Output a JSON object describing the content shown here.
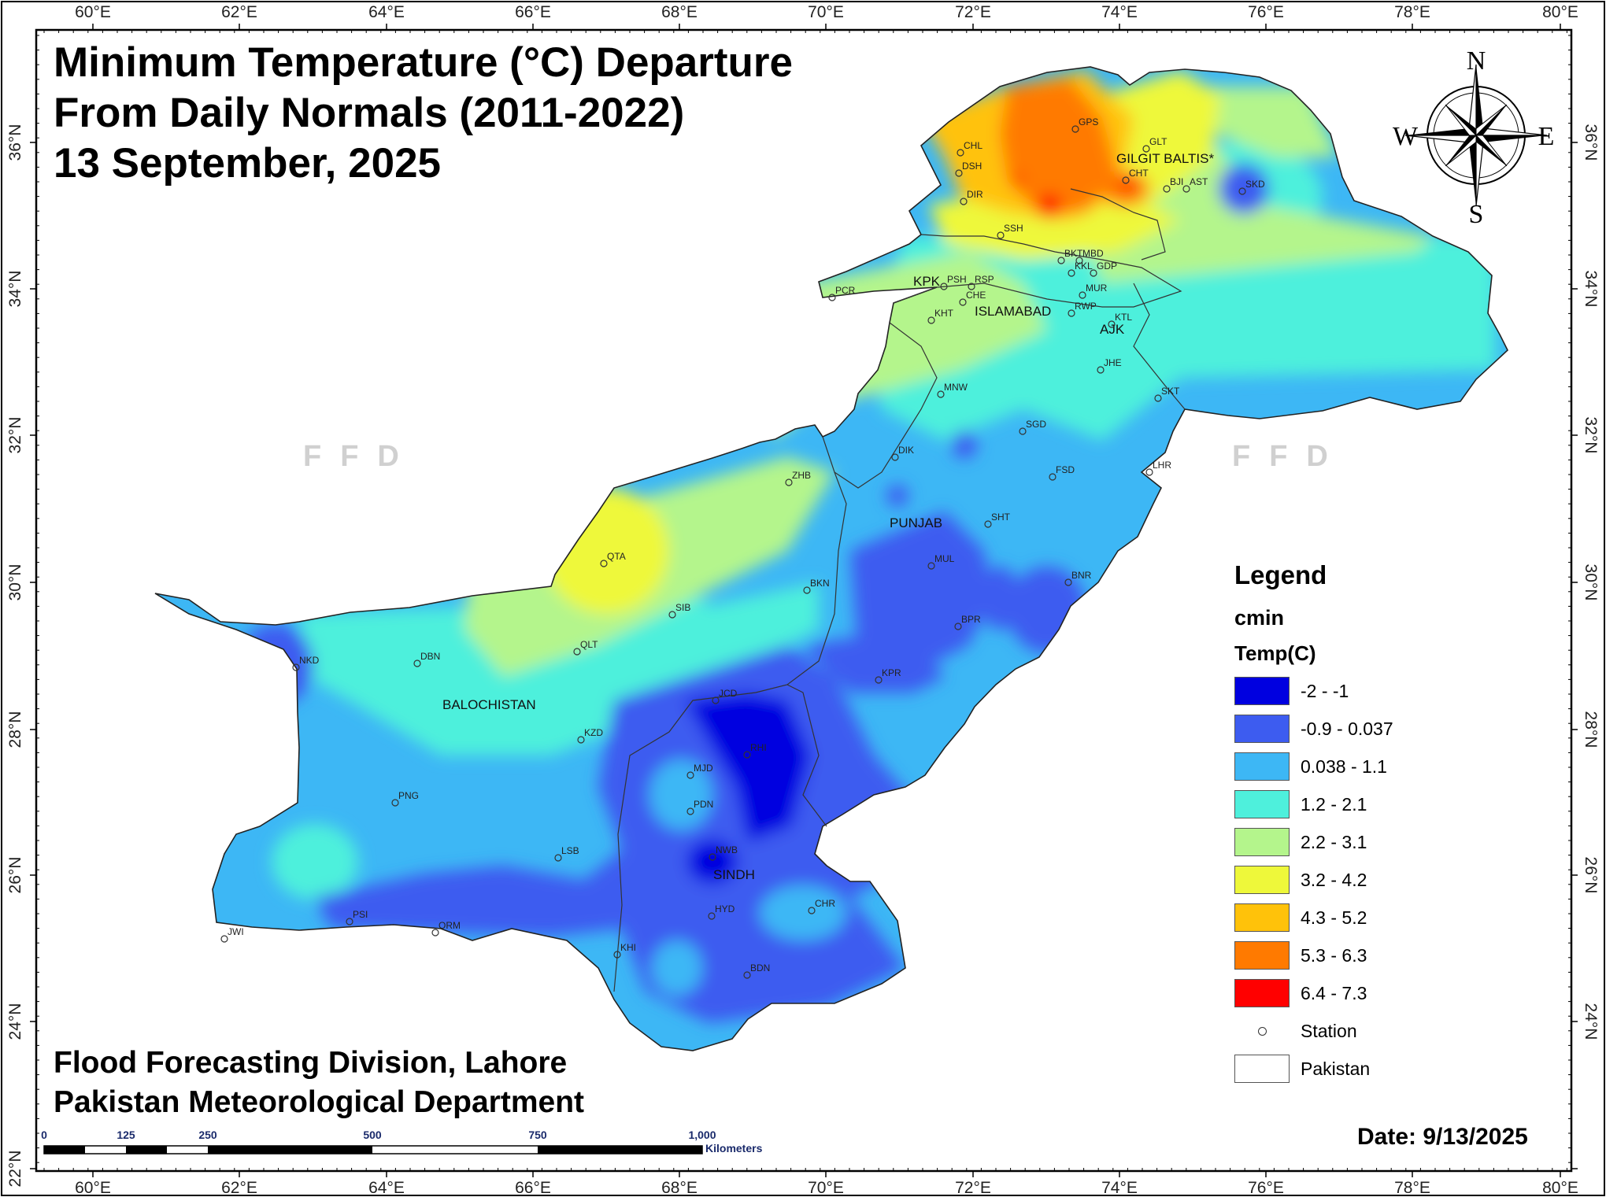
{
  "title": {
    "line1": "Minimum Temperature (°C) Departure",
    "line2": "From Daily Normals (2011-2022)",
    "line3": "13 September, 2025"
  },
  "credits": {
    "line1": "Flood Forecasting Division, Lahore",
    "line2": "Pakistan Meteorological Department"
  },
  "date_label": "Date: 9/13/2025",
  "watermark": "FFD",
  "axes": {
    "lon_labels": [
      "60°E",
      "62°E",
      "64°E",
      "66°E",
      "68°E",
      "70°E",
      "72°E",
      "74°E",
      "76°E",
      "78°E",
      "80°E"
    ],
    "lat_labels": [
      "22°N",
      "24°N",
      "26°N",
      "28°N",
      "30°N",
      "32°N",
      "34°N",
      "36°N"
    ]
  },
  "compass": {
    "n": "N",
    "s": "S",
    "e": "E",
    "w": "W"
  },
  "scale_bar": {
    "labels": [
      "0",
      "125",
      "250",
      "500",
      "750",
      "1,000"
    ],
    "unit": "Kilometers"
  },
  "legend": {
    "title": "Legend",
    "layer": "cmin",
    "field": "Temp(C)",
    "classes": [
      {
        "label": "-2 - -1",
        "color": "#0000e0"
      },
      {
        "label": "-0.9 - 0.037",
        "color": "#3d5cf0"
      },
      {
        "label": "0.038 - 1.1",
        "color": "#3db7f5"
      },
      {
        "label": "1.2 - 2.1",
        "color": "#4ef0dc"
      },
      {
        "label": "2.2 - 3.1",
        "color": "#b4f58c"
      },
      {
        "label": "3.2 - 4.2",
        "color": "#eef83a"
      },
      {
        "label": "4.3 - 5.2",
        "color": "#ffc20a"
      },
      {
        "label": "5.3 - 6.3",
        "color": "#ff7a00"
      },
      {
        "label": "6.4 - 7.3",
        "color": "#ff0000"
      }
    ],
    "station_label": "Station",
    "boundary_label": "Pakistan"
  },
  "regions": [
    "GILGIT BALTIS*",
    "KPK",
    "ISLAMABAD",
    "AJK",
    "PUNJAB",
    "BALOCHISTAN",
    "SINDH"
  ],
  "stations": [
    "GPS",
    "GLT",
    "CHL",
    "DSH",
    "DIR",
    "CHT",
    "BJI",
    "AST",
    "SKD",
    "SSH",
    "BKT",
    "MBD",
    "KKL",
    "GDP",
    "PSH",
    "RSP",
    "MUR",
    "CHE",
    "RWP",
    "KHT",
    "KTL",
    "PCR",
    "JHE",
    "SKT",
    "MNW",
    "SGD",
    "DIK",
    "LHR",
    "FSD",
    "ZHB",
    "SHT",
    "QTA",
    "MUL",
    "BKN",
    "BNR",
    "SIB",
    "BPR",
    "NKD",
    "DBN",
    "QLT",
    "KPR",
    "JCD",
    "KZD",
    "RHI",
    "MJD",
    "PNG",
    "PDN",
    "LSB",
    "NWB",
    "HYD",
    "CHR",
    "PSI",
    "ORM",
    "JWI",
    "KHI",
    "BDN"
  ]
}
